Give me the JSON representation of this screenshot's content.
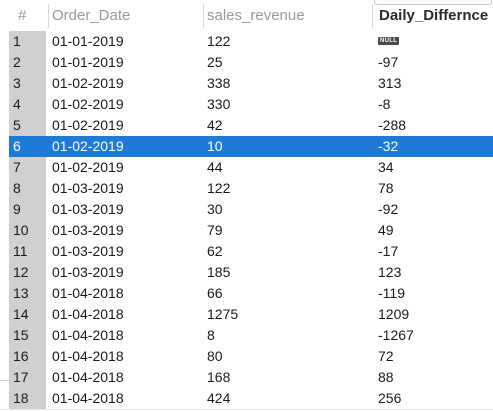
{
  "columns": {
    "num": "#",
    "order_date": "Order_Date",
    "sales_revenue": "sales_revenue",
    "daily_difference": "Daily_Differnce"
  },
  "null_label": "NULL",
  "selected_row": 6,
  "rows": [
    {
      "n": "1",
      "date": "01-01-2019",
      "rev": "122",
      "diff": null
    },
    {
      "n": "2",
      "date": "01-01-2019",
      "rev": "25",
      "diff": "-97"
    },
    {
      "n": "3",
      "date": "01-02-2019",
      "rev": "338",
      "diff": "313"
    },
    {
      "n": "4",
      "date": "01-02-2019",
      "rev": "330",
      "diff": "-8"
    },
    {
      "n": "5",
      "date": "01-02-2019",
      "rev": "42",
      "diff": "-288"
    },
    {
      "n": "6",
      "date": "01-02-2019",
      "rev": "10",
      "diff": "-32"
    },
    {
      "n": "7",
      "date": "01-02-2019",
      "rev": "44",
      "diff": "34"
    },
    {
      "n": "8",
      "date": "01-03-2019",
      "rev": "122",
      "diff": "78"
    },
    {
      "n": "9",
      "date": "01-03-2019",
      "rev": "30",
      "diff": "-92"
    },
    {
      "n": "10",
      "date": "01-03-2019",
      "rev": "79",
      "diff": "49"
    },
    {
      "n": "11",
      "date": "01-03-2019",
      "rev": "62",
      "diff": "-17"
    },
    {
      "n": "12",
      "date": "01-03-2019",
      "rev": "185",
      "diff": "123"
    },
    {
      "n": "13",
      "date": "01-04-2018",
      "rev": "66",
      "diff": "-119"
    },
    {
      "n": "14",
      "date": "01-04-2018",
      "rev": "1275",
      "diff": "1209"
    },
    {
      "n": "15",
      "date": "01-04-2018",
      "rev": "8",
      "diff": "-1267"
    },
    {
      "n": "16",
      "date": "01-04-2018",
      "rev": "80",
      "diff": "72"
    },
    {
      "n": "17",
      "date": "01-04-2018",
      "rev": "168",
      "diff": "88"
    },
    {
      "n": "18",
      "date": "01-04-2018",
      "rev": "424",
      "diff": "256"
    }
  ],
  "colors": {
    "selection": "#1f7ad6",
    "row_number_bg": "#d0d0d0",
    "header_text": "#9a9a9a"
  }
}
